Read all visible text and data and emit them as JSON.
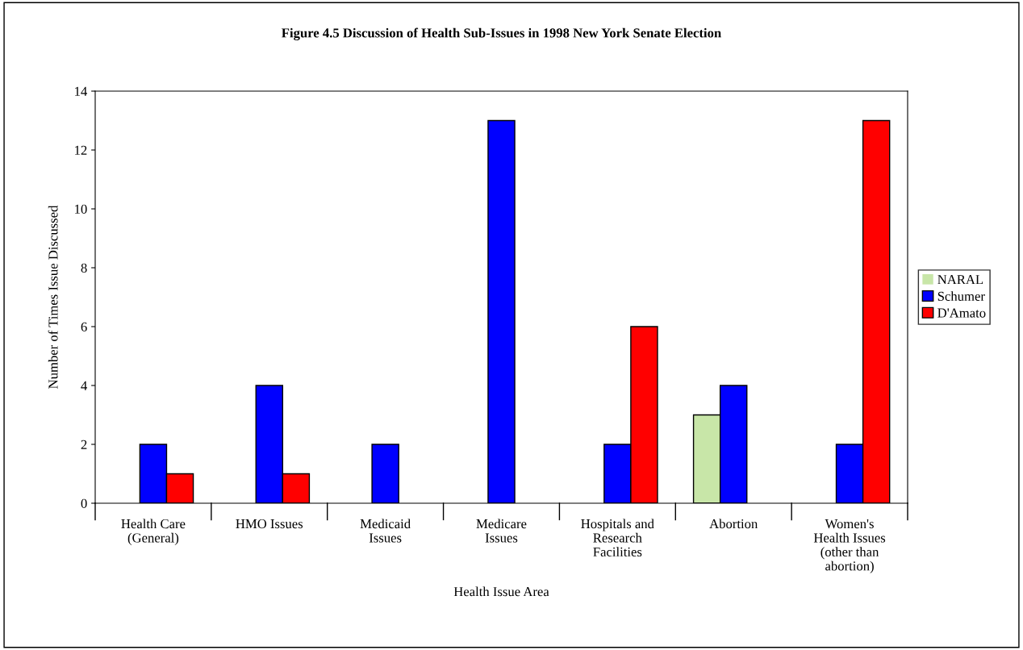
{
  "chart_data": {
    "type": "bar",
    "title": "Figure 4.5 Discussion of Health Sub-Issues in 1998 New York Senate Election",
    "xlabel": "Health Issue Area",
    "ylabel": "Number of Times Issue Discussed",
    "categories": [
      "Health Care\n(General)",
      "HMO Issues",
      "Medicaid\nIssues",
      "Medicare\nIssues",
      "Hospitals and\nResearch\nFacilities",
      "Abortion",
      "Women's\nHealth Issues\n(other than\nabortion)"
    ],
    "series": [
      {
        "name": "NARAL",
        "color": "#c8e6a8",
        "values": [
          0,
          0,
          0,
          0,
          0,
          3,
          0
        ]
      },
      {
        "name": "Schumer",
        "color": "#0000ff",
        "values": [
          2,
          4,
          2,
          13,
          2,
          4,
          2
        ]
      },
      {
        "name": "D'Amato",
        "color": "#ff0000",
        "values": [
          1,
          1,
          0,
          0,
          6,
          0,
          13
        ]
      }
    ],
    "ylim": [
      0,
      14
    ],
    "yticks": [
      0,
      2,
      4,
      6,
      8,
      10,
      12,
      14
    ],
    "grid": false,
    "legend": "right"
  }
}
